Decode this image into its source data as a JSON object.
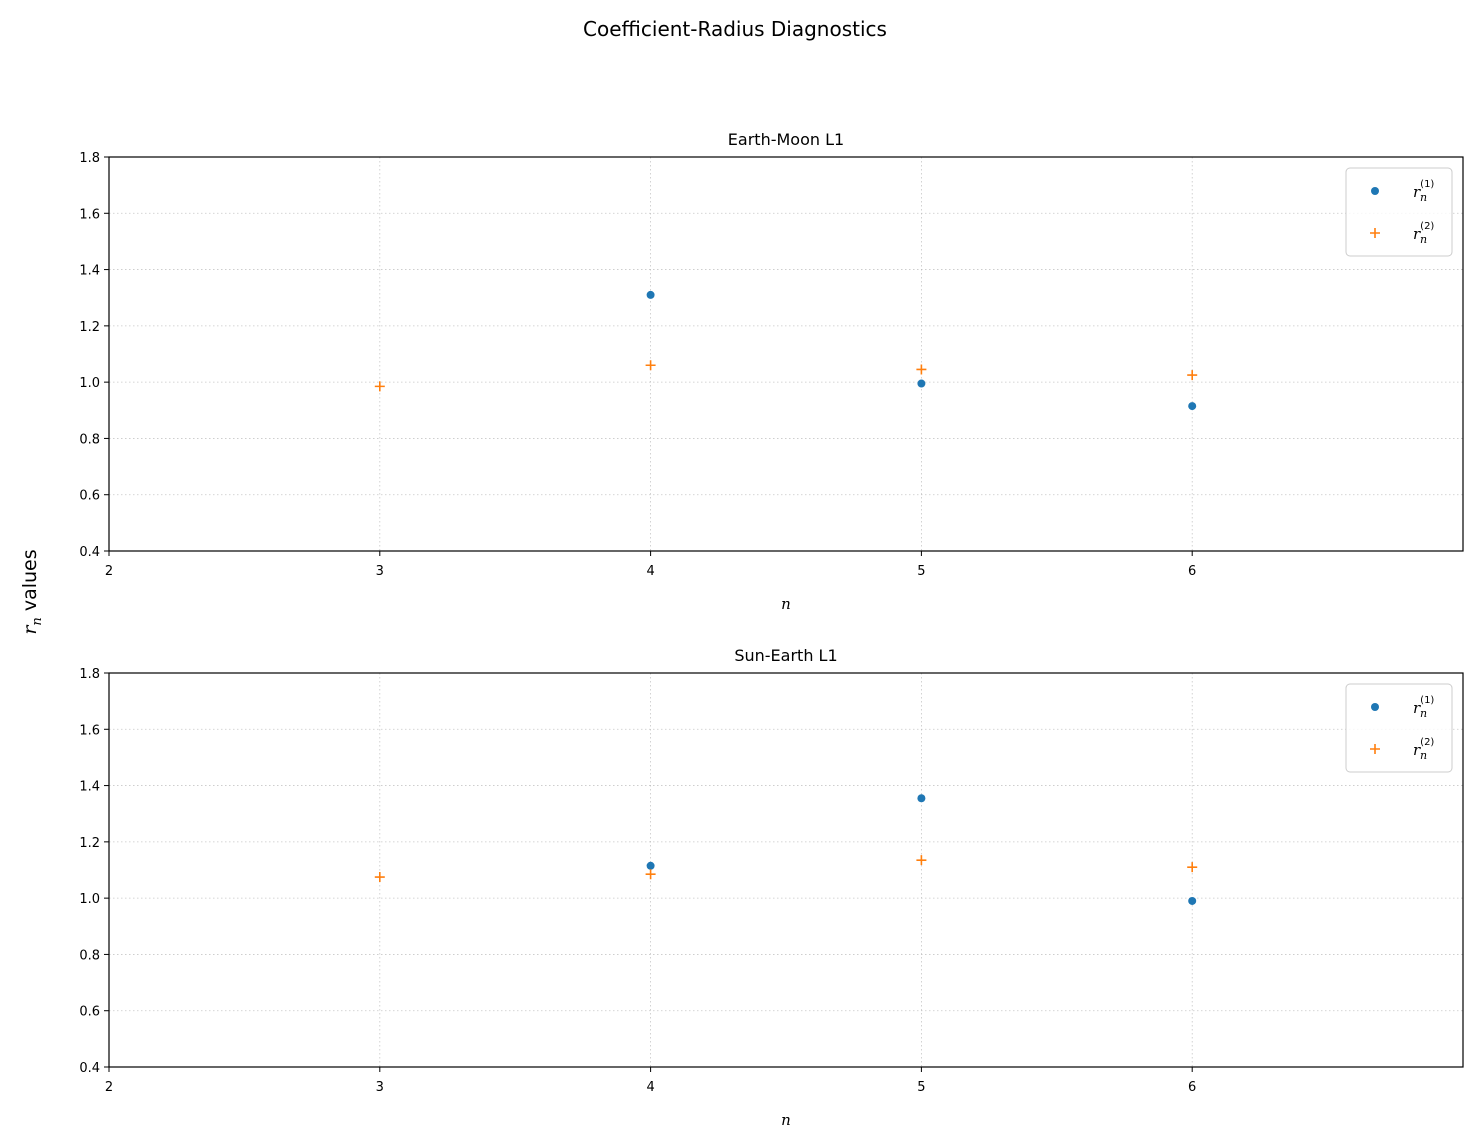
{
  "figure": {
    "suptitle": "Coefficient-Radius Diagnostics",
    "ylabel_symbol": "r",
    "ylabel_subscript": "n",
    "ylabel_text": " values"
  },
  "colors": {
    "series1": "#1f77b4",
    "series2": "#ff7f0e",
    "grid": "#b0b0b0",
    "axes": "#000000"
  },
  "chart_data": [
    {
      "type": "scatter",
      "title": "Earth-Moon L1",
      "xlabel": "n",
      "xlim": [
        2,
        7
      ],
      "ylim": [
        0.4,
        1.8
      ],
      "xticks": [
        2,
        3,
        4,
        5,
        6
      ],
      "yticks": [
        0.4,
        0.6,
        0.8,
        1.0,
        1.2,
        1.4,
        1.6,
        1.8
      ],
      "grid": true,
      "legend_position": "upper right",
      "series": [
        {
          "name": "r_n^(1)",
          "symbol": "r",
          "sub": "n",
          "sup": "(1)",
          "marker": "dot",
          "color": "#1f77b4",
          "x": [
            4,
            5,
            6
          ],
          "y": [
            1.31,
            0.995,
            0.915
          ]
        },
        {
          "name": "r_n^(2)",
          "symbol": "r",
          "sub": "n",
          "sup": "(2)",
          "marker": "plus",
          "color": "#ff7f0e",
          "x": [
            3,
            4,
            5,
            6
          ],
          "y": [
            0.985,
            1.06,
            1.045,
            1.025
          ]
        }
      ]
    },
    {
      "type": "scatter",
      "title": "Sun-Earth L1",
      "xlabel": "n",
      "xlim": [
        2,
        7
      ],
      "ylim": [
        0.4,
        1.8
      ],
      "xticks": [
        2,
        3,
        4,
        5,
        6
      ],
      "yticks": [
        0.4,
        0.6,
        0.8,
        1.0,
        1.2,
        1.4,
        1.6,
        1.8
      ],
      "grid": true,
      "legend_position": "upper right",
      "series": [
        {
          "name": "r_n^(1)",
          "symbol": "r",
          "sub": "n",
          "sup": "(1)",
          "marker": "dot",
          "color": "#1f77b4",
          "x": [
            4,
            5,
            6
          ],
          "y": [
            1.115,
            1.355,
            0.99
          ]
        },
        {
          "name": "r_n^(2)",
          "symbol": "r",
          "sub": "n",
          "sup": "(2)",
          "marker": "plus",
          "color": "#ff7f0e",
          "x": [
            3,
            4,
            5,
            6
          ],
          "y": [
            1.075,
            1.085,
            1.135,
            1.11
          ]
        }
      ]
    }
  ]
}
